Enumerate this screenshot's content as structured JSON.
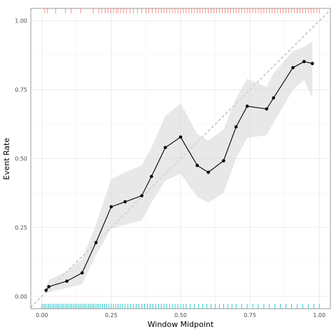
{
  "chart_data": {
    "type": "line",
    "title": "",
    "xlabel": "Window Midpoint",
    "ylabel": "Event Rate",
    "xlim": [
      -0.04,
      1.04
    ],
    "ylim": [
      -0.045,
      1.045
    ],
    "x_ticks": [
      0.0,
      0.25,
      0.5,
      0.75,
      1.0
    ],
    "x_tick_labels": [
      "0.00",
      "0.25",
      "0.50",
      "0.75",
      "1.00"
    ],
    "y_ticks": [
      0.0,
      0.25,
      0.5,
      0.75,
      1.0
    ],
    "y_tick_labels": [
      "0.00",
      "0.25",
      "0.50",
      "0.75",
      "1.00"
    ],
    "grid": true,
    "reference_line": {
      "style": "dashed",
      "from": [
        0,
        0
      ],
      "to": [
        1,
        1
      ],
      "color": "#a6a6a6"
    },
    "series": [
      {
        "x": [
          0.015,
          0.025,
          0.09,
          0.145,
          0.195,
          0.25,
          0.3,
          0.36,
          0.395,
          0.445,
          0.5,
          0.56,
          0.6,
          0.655,
          0.7,
          0.74,
          0.81,
          0.835,
          0.905,
          0.945,
          0.975
        ],
        "y": [
          0.022,
          0.035,
          0.055,
          0.085,
          0.195,
          0.325,
          0.343,
          0.365,
          0.435,
          0.54,
          0.578,
          0.475,
          0.45,
          0.492,
          0.615,
          0.69,
          0.68,
          0.72,
          0.83,
          0.852,
          0.845
        ],
        "lower": [
          0.01,
          0.015,
          0.03,
          0.045,
          0.15,
          0.245,
          0.26,
          0.275,
          0.34,
          0.42,
          0.445,
          0.36,
          0.34,
          0.375,
          0.5,
          0.575,
          0.585,
          0.63,
          0.75,
          0.785,
          0.72
        ],
        "upper": [
          0.035,
          0.06,
          0.09,
          0.135,
          0.26,
          0.425,
          0.45,
          0.475,
          0.54,
          0.655,
          0.7,
          0.59,
          0.565,
          0.605,
          0.72,
          0.79,
          0.76,
          0.81,
          0.89,
          0.905,
          0.925
        ],
        "color": "#000000",
        "band_color": "#d9d9d9"
      }
    ],
    "rugs": [
      {
        "position": "top",
        "color": "#f8766d",
        "x": [
          0.01,
          0.02,
          0.05,
          0.085,
          0.105,
          0.14,
          0.185,
          0.205,
          0.215,
          0.228,
          0.238,
          0.248,
          0.258,
          0.268,
          0.275,
          0.285,
          0.295,
          0.305,
          0.318,
          0.33,
          0.345,
          0.36,
          0.375,
          0.385,
          0.398,
          0.41,
          0.42,
          0.43,
          0.44,
          0.45,
          0.46,
          0.47,
          0.48,
          0.49,
          0.5,
          0.51,
          0.52,
          0.53,
          0.54,
          0.55,
          0.56,
          0.57,
          0.58,
          0.59,
          0.6,
          0.61,
          0.62,
          0.63,
          0.64,
          0.65,
          0.66,
          0.67,
          0.68,
          0.69,
          0.7,
          0.71,
          0.72,
          0.73,
          0.74,
          0.75,
          0.76,
          0.77,
          0.78,
          0.79,
          0.8,
          0.81,
          0.82,
          0.83,
          0.84,
          0.85,
          0.86,
          0.87,
          0.88,
          0.89,
          0.9,
          0.91,
          0.92,
          0.93,
          0.94,
          0.95,
          0.96,
          0.97,
          0.98,
          0.99,
          1.0
        ]
      },
      {
        "position": "bottom",
        "color": "#00bfc4",
        "x": [
          0.0,
          0.006,
          0.012,
          0.018,
          0.024,
          0.03,
          0.036,
          0.042,
          0.048,
          0.054,
          0.06,
          0.066,
          0.072,
          0.078,
          0.084,
          0.09,
          0.096,
          0.102,
          0.108,
          0.114,
          0.12,
          0.126,
          0.132,
          0.138,
          0.144,
          0.15,
          0.156,
          0.162,
          0.168,
          0.174,
          0.18,
          0.186,
          0.192,
          0.198,
          0.204,
          0.21,
          0.218,
          0.226,
          0.234,
          0.242,
          0.25,
          0.258,
          0.266,
          0.274,
          0.282,
          0.29,
          0.3,
          0.31,
          0.32,
          0.33,
          0.34,
          0.35,
          0.36,
          0.37,
          0.38,
          0.39,
          0.4,
          0.41,
          0.42,
          0.43,
          0.44,
          0.45,
          0.46,
          0.47,
          0.48,
          0.49,
          0.5,
          0.51,
          0.52,
          0.535,
          0.55,
          0.565,
          0.58,
          0.595,
          0.61,
          0.625,
          0.64,
          0.655,
          0.67,
          0.685,
          0.7,
          0.72,
          0.74,
          0.76,
          0.78,
          0.8,
          0.82,
          0.84,
          0.86,
          0.88,
          0.9,
          0.92,
          0.94,
          0.96,
          0.98,
          1.0
        ]
      }
    ]
  }
}
